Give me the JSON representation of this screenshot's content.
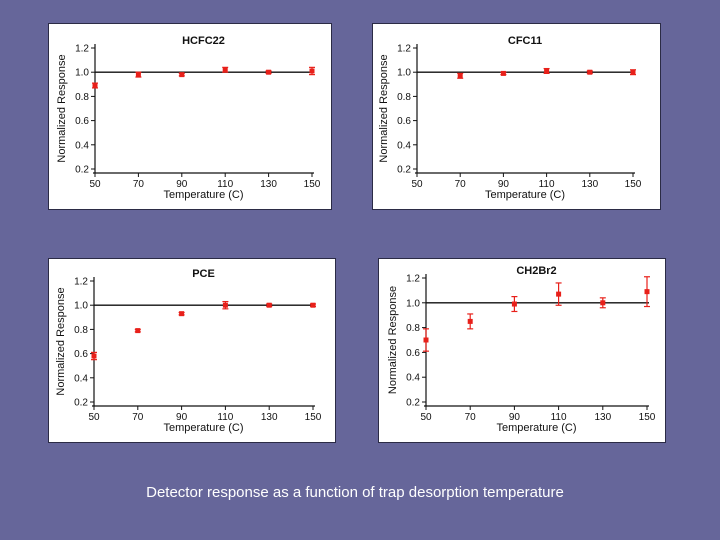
{
  "slide": {
    "background": "#66669a",
    "caption": "Detector response as a function of trap desorption temperature"
  },
  "chart_data": [
    {
      "type": "scatter",
      "title": "HCFC22",
      "xlabel": "Temperature (C)",
      "ylabel": "Normalized Response",
      "x_ticks": [
        "50",
        "70",
        "90",
        "110",
        "130",
        "150"
      ],
      "y_ticks": [
        "0.2",
        "0.4",
        "0.6",
        "0.8",
        "1.0",
        "1.2"
      ],
      "xlim": [
        50,
        150
      ],
      "ylim": [
        0.2,
        1.2
      ],
      "reference_line": 1.0,
      "marker_color": "#e8201a",
      "points": [
        {
          "x": 50,
          "y": 0.89,
          "err": 0.02
        },
        {
          "x": 70,
          "y": 0.98,
          "err": 0.02
        },
        {
          "x": 90,
          "y": 0.98,
          "err": 0.01
        },
        {
          "x": 110,
          "y": 1.02,
          "err": 0.02
        },
        {
          "x": 130,
          "y": 1.0,
          "err": 0.01
        },
        {
          "x": 150,
          "y": 1.01,
          "err": 0.03
        }
      ]
    },
    {
      "type": "scatter",
      "title": "CFC11",
      "xlabel": "Temperature (C)",
      "ylabel": "Normalized Response",
      "x_ticks": [
        "50",
        "70",
        "90",
        "110",
        "130",
        "150"
      ],
      "y_ticks": [
        "0.2",
        "0.4",
        "0.6",
        "0.8",
        "1.0",
        "1.2"
      ],
      "xlim": [
        50,
        150
      ],
      "ylim": [
        0.2,
        1.2
      ],
      "reference_line": 1.0,
      "marker_color": "#e8201a",
      "points": [
        {
          "x": 70,
          "y": 0.97,
          "err": 0.02
        },
        {
          "x": 90,
          "y": 0.99,
          "err": 0.01
        },
        {
          "x": 110,
          "y": 1.01,
          "err": 0.02
        },
        {
          "x": 130,
          "y": 1.0,
          "err": 0.01
        },
        {
          "x": 150,
          "y": 1.0,
          "err": 0.02
        }
      ]
    },
    {
      "type": "scatter",
      "title": "PCE",
      "xlabel": "Temperature (C)",
      "ylabel": "Normalized Response",
      "x_ticks": [
        "50",
        "70",
        "90",
        "110",
        "130",
        "150"
      ],
      "y_ticks": [
        "0.2",
        "0.4",
        "0.6",
        "0.8",
        "1.0",
        "1.2"
      ],
      "xlim": [
        50,
        150
      ],
      "ylim": [
        0.2,
        1.2
      ],
      "reference_line": 1.0,
      "marker_color": "#e8201a",
      "points": [
        {
          "x": 50,
          "y": 0.58,
          "err": 0.03
        },
        {
          "x": 70,
          "y": 0.79,
          "err": 0.01
        },
        {
          "x": 90,
          "y": 0.93,
          "err": 0.01
        },
        {
          "x": 110,
          "y": 1.0,
          "err": 0.03
        },
        {
          "x": 130,
          "y": 1.0,
          "err": 0.01
        },
        {
          "x": 150,
          "y": 1.0,
          "err": 0.01
        }
      ]
    },
    {
      "type": "scatter",
      "title": "CH2Br2",
      "xlabel": "Temperature (C)",
      "ylabel": "Normalized Response",
      "x_ticks": [
        "50",
        "70",
        "90",
        "110",
        "130",
        "150"
      ],
      "y_ticks": [
        "0.2",
        "0.4",
        "0.6",
        "0.8",
        "1.0",
        "1.2"
      ],
      "xlim": [
        50,
        150
      ],
      "ylim": [
        0.2,
        1.2
      ],
      "reference_line": 1.0,
      "marker_color": "#e8201a",
      "points": [
        {
          "x": 50,
          "y": 0.7,
          "err": 0.09
        },
        {
          "x": 70,
          "y": 0.85,
          "err": 0.06
        },
        {
          "x": 90,
          "y": 0.99,
          "err": 0.06
        },
        {
          "x": 110,
          "y": 1.07,
          "err": 0.09
        },
        {
          "x": 130,
          "y": 1.0,
          "err": 0.04
        },
        {
          "x": 150,
          "y": 1.09,
          "err": 0.12
        }
      ]
    }
  ]
}
